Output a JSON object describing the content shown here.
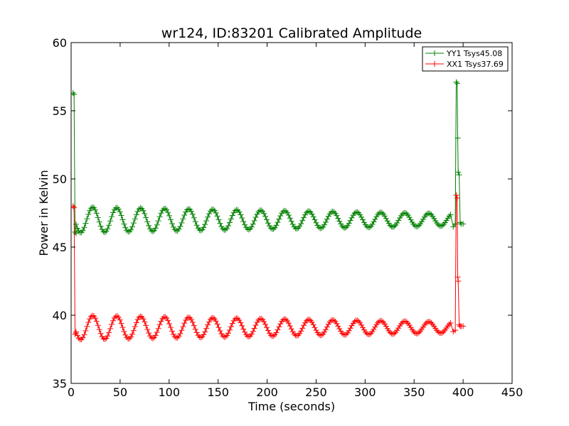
{
  "chart_data": {
    "type": "line",
    "title": "wr124, ID:83201 Calibrated Amplitude",
    "xlabel": "Time (seconds)",
    "ylabel": "Power in Kelvin",
    "xlim": [
      0,
      450
    ],
    "ylim": [
      35,
      60
    ],
    "xticks": [
      0,
      50,
      100,
      150,
      200,
      250,
      300,
      350,
      400,
      450
    ],
    "yticks": [
      35,
      40,
      45,
      50,
      55,
      60
    ],
    "grid": false,
    "legend_position": "top-right",
    "marker": "+",
    "series": [
      {
        "name": "YY1 Tsys45.08",
        "color": "#008000",
        "baseline": 47.0,
        "amplitude_start": 0.95,
        "amplitude_end": 0.45,
        "period": 24.5,
        "phase_peak": 22,
        "wave_start": 5,
        "wave_end": 388,
        "step": 1.4,
        "head_points": [
          [
            2,
            56.3
          ],
          [
            3,
            56.2
          ],
          [
            4,
            46.1
          ],
          [
            5,
            46.0
          ]
        ],
        "tail_points": [
          [
            390,
            46.5
          ],
          [
            392,
            46.7
          ],
          [
            393,
            57.1
          ],
          [
            394,
            57.0
          ],
          [
            394.5,
            53.0
          ],
          [
            395,
            50.5
          ],
          [
            396,
            50.3
          ],
          [
            397,
            46.8
          ],
          [
            398,
            46.7
          ],
          [
            400,
            46.7
          ]
        ]
      },
      {
        "name": "XX1 Tsys37.69",
        "color": "#ff0000",
        "baseline": 39.1,
        "amplitude_start": 0.9,
        "amplitude_end": 0.4,
        "period": 24.5,
        "phase_peak": 22,
        "wave_start": 5,
        "wave_end": 388,
        "step": 1.4,
        "head_points": [
          [
            2,
            48.0
          ],
          [
            3,
            47.9
          ],
          [
            4,
            38.6
          ],
          [
            5,
            38.7
          ]
        ],
        "tail_points": [
          [
            390,
            38.8
          ],
          [
            392,
            38.9
          ],
          [
            393,
            48.8
          ],
          [
            394,
            48.6
          ],
          [
            394.5,
            42.8
          ],
          [
            395,
            42.5
          ],
          [
            396,
            39.3
          ],
          [
            397,
            39.2
          ],
          [
            398,
            39.2
          ],
          [
            400,
            39.2
          ]
        ]
      }
    ]
  }
}
